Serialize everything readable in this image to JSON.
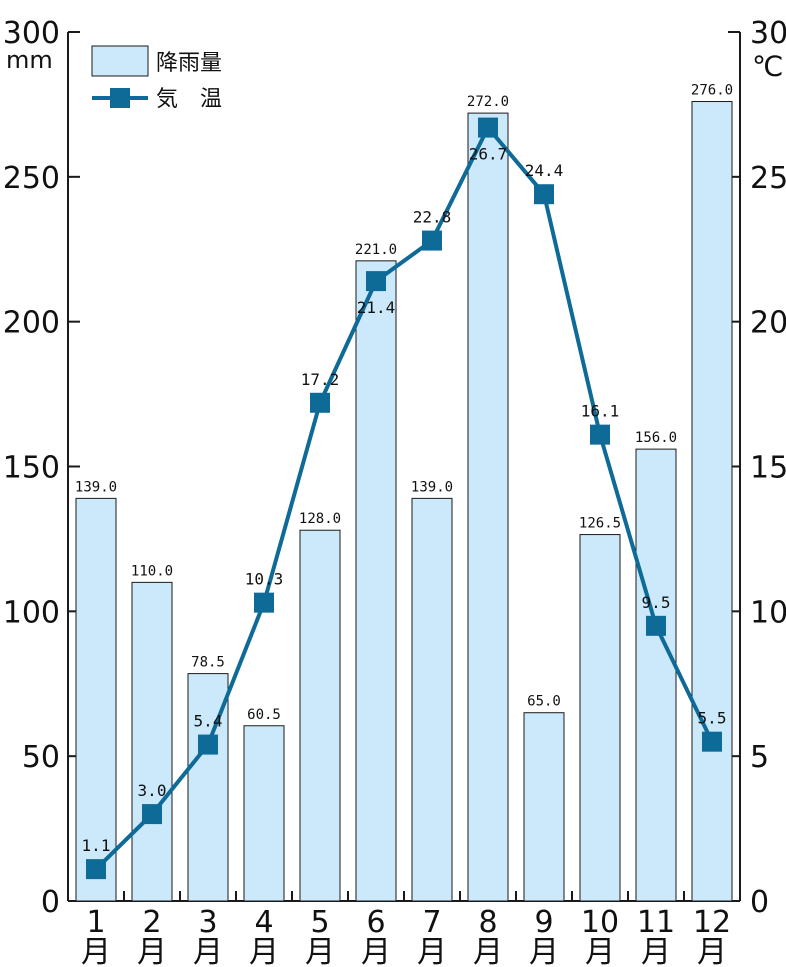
{
  "chart_data": {
    "type": "bar+line",
    "categories": [
      "1\n月",
      "2\n月",
      "3\n月",
      "4\n月",
      "5\n月",
      "6\n月",
      "7\n月",
      "8\n月",
      "9\n月",
      "10\n月",
      "11\n月",
      "12\n月"
    ],
    "category_numbers": [
      "1",
      "2",
      "3",
      "4",
      "5",
      "6",
      "7",
      "8",
      "9",
      "10",
      "11",
      "12"
    ],
    "category_suffix": "月",
    "series": [
      {
        "name": "降雨量",
        "type": "bar",
        "axis": "left",
        "values": [
          139.0,
          110.0,
          78.5,
          60.5,
          128.0,
          221.0,
          139.0,
          272.0,
          65.0,
          126.5,
          156.0,
          276.0
        ],
        "labels": [
          "139.0",
          "110.0",
          "78.5",
          "60.5",
          "128.0",
          "221.0",
          "139.0",
          "272.0",
          "65.0",
          "126.5",
          "156.0",
          "276.0"
        ],
        "color": "#cbe9fa"
      },
      {
        "name": "気　温",
        "type": "line",
        "axis": "right",
        "values": [
          1.1,
          3.0,
          5.4,
          10.3,
          17.2,
          21.4,
          22.8,
          26.7,
          24.4,
          16.1,
          9.5,
          5.5
        ],
        "labels": [
          "1.1",
          "3.0",
          "5.4",
          "10.3",
          "17.2",
          "21.4",
          "22.8",
          "26.7",
          "24.4",
          "16.1",
          "9.5",
          "5.5"
        ],
        "color": "#0e6a96"
      }
    ],
    "left_axis": {
      "unit": "mm",
      "ylim": [
        0,
        300
      ],
      "ticks": [
        "0",
        "50",
        "100",
        "150",
        "200",
        "250",
        "300"
      ]
    },
    "right_axis": {
      "unit": "℃",
      "ylim": [
        0,
        30
      ],
      "ticks": [
        "0",
        "5",
        "10",
        "15",
        "20",
        "25",
        "30"
      ]
    },
    "legend": {
      "placement": "top-left",
      "rain": "降雨量",
      "temp": "気　温"
    },
    "grid": false
  }
}
